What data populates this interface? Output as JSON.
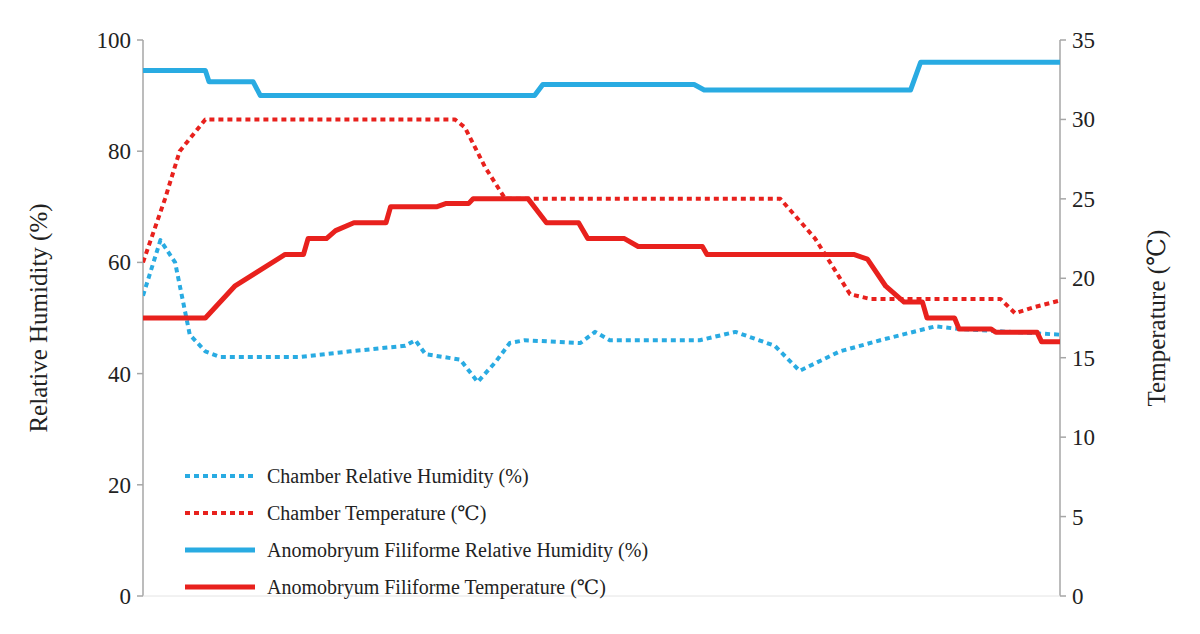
{
  "chart_data": {
    "type": "line",
    "y_label": "Relative Humidity (%)",
    "y2_label": "Temperature (℃)",
    "xlim": [
      0,
      1000
    ],
    "ylim": [
      0,
      100
    ],
    "yticks": [
      0,
      20,
      40,
      60,
      80,
      100
    ],
    "y2lim": [
      0,
      35
    ],
    "y2ticks": [
      0,
      5,
      10,
      15,
      20,
      25,
      30,
      35
    ],
    "tick_labels": "y",
    "grid": false,
    "legend": "lower left",
    "series": [
      {
        "name": "Chamber Relative Humidity (%)",
        "color": "#29abe2",
        "line_style": "dotted",
        "x": [
          0,
          19,
          35,
          51,
          68,
          84,
          171,
          226,
          286,
          297,
          308,
          346,
          365,
          384,
          400,
          416,
          477,
          493,
          509,
          607,
          646,
          689,
          716,
          760,
          804,
          864,
          891,
          1000
        ],
        "values": [
          54,
          64,
          60,
          47,
          44,
          43,
          43,
          44,
          45,
          46,
          43.5,
          42.5,
          38.5,
          42,
          45.5,
          46,
          45.5,
          47.5,
          46,
          46,
          47.5,
          45,
          40.5,
          44,
          46,
          48.5,
          48,
          47
        ]
      },
      {
        "name": "Chamber Temperature (℃)",
        "color": "#e8211d",
        "line_style": "dotted",
        "axis": "y2",
        "x": [
          0,
          24,
          40,
          68,
          340,
          351,
          373,
          395,
          695,
          733,
          771,
          793,
          935,
          951,
          973,
          1000
        ],
        "values": [
          21,
          25,
          28,
          30,
          30,
          29.5,
          27,
          25,
          25,
          22.5,
          19,
          18.7,
          18.7,
          17.8,
          18.2,
          18.6
        ]
      },
      {
        "name": "Anomobryum Filiforme Relative Humidity (%)",
        "color": "#29abe2",
        "line_style": "solid",
        "x": [
          0,
          68,
          72,
          120,
          128,
          427,
          436,
          601,
          612,
          837,
          848,
          1000
        ],
        "values": [
          94.5,
          94.5,
          92.5,
          92.5,
          90,
          90,
          92,
          92,
          91,
          91,
          96,
          96
        ]
      },
      {
        "name": "Anomobryum Filiforme Temperature (℃)",
        "color": "#e8211d",
        "line_style": "solid",
        "axis": "y2",
        "x": [
          0,
          68,
          100,
          155,
          175,
          180,
          200,
          210,
          230,
          265,
          270,
          320,
          330,
          355,
          360,
          420,
          440,
          475,
          485,
          525,
          540,
          610,
          615,
          775,
          790,
          810,
          830,
          850,
          855,
          885,
          890,
          925,
          930,
          975,
          980,
          1000
        ],
        "values": [
          17.5,
          17.5,
          19.5,
          21.5,
          21.5,
          22.5,
          22.5,
          23,
          23.5,
          23.5,
          24.5,
          24.5,
          24.7,
          24.7,
          25,
          25,
          23.5,
          23.5,
          22.5,
          22.5,
          22,
          22,
          21.5,
          21.5,
          21.2,
          19.5,
          18.5,
          18.5,
          17.5,
          17.5,
          16.8,
          16.8,
          16.6,
          16.6,
          16,
          16
        ]
      }
    ]
  }
}
